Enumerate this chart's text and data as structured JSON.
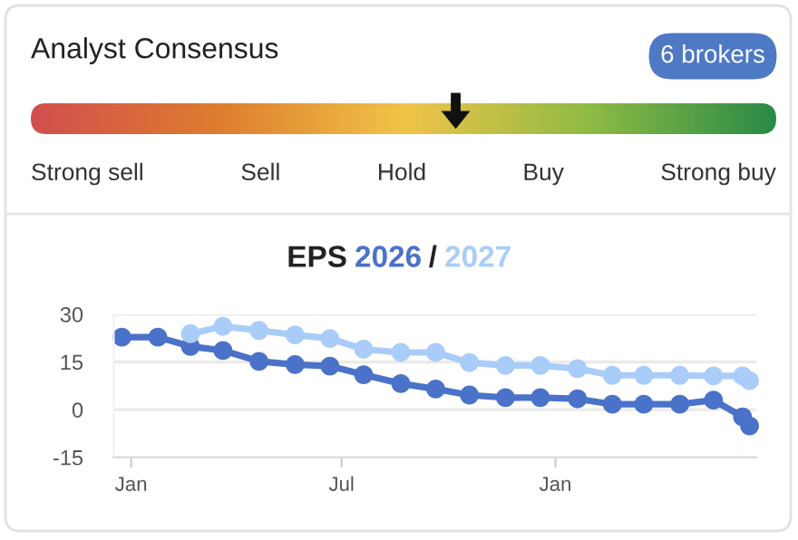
{
  "chart_data": [
    {
      "type": "other",
      "title": "Analyst Consensus",
      "annotations": [
        "6 brokers"
      ],
      "categories": [
        "Strong sell",
        "Sell",
        "Hold",
        "Buy",
        "Strong buy"
      ],
      "colors": [
        "#d24f50",
        "#de7d2e",
        "#f1c448",
        "#8fbb44",
        "#2a8b47"
      ]
    },
    {
      "type": "line",
      "title": "EPS",
      "annotations": [
        "/"
      ],
      "marker": "circle",
      "grid": "y",
      "legend": "top",
      "xlim": [
        "2024-12-17",
        "2026-06-23"
      ],
      "xticks": [
        {
          "value": "2025-01-01",
          "label": "Jan"
        },
        {
          "value": "2025-07-01",
          "label": "Jul"
        },
        {
          "value": "2026-01-01",
          "label": "Jan"
        }
      ],
      "ylim": [
        -15,
        30
      ],
      "yticks": [
        -15,
        0,
        15,
        30
      ],
      "series": [
        {
          "name": "2026",
          "color": "#4a72c9",
          "x": [
            "2024-12-24",
            "2025-01-24",
            "2025-02-21",
            "2025-03-21",
            "2025-04-21",
            "2025-05-22",
            "2025-06-21",
            "2025-07-20",
            "2025-08-21",
            "2025-09-20",
            "2025-10-19",
            "2025-11-19",
            "2025-12-19",
            "2026-01-20",
            "2026-02-19",
            "2026-03-18",
            "2026-04-18",
            "2026-05-17",
            "2026-06-11",
            "2026-06-17"
          ],
          "values": [
            22.8,
            22.8,
            19.9,
            18.6,
            15.2,
            14.2,
            13.7,
            11.0,
            8.2,
            6.5,
            4.6,
            3.8,
            3.8,
            3.4,
            1.7,
            1.7,
            1.7,
            3.0,
            -2.3,
            -5.1
          ]
        },
        {
          "name": "2027",
          "color": "#a9cdf8",
          "x": [
            "2025-02-21",
            "2025-03-21",
            "2025-04-21",
            "2025-05-22",
            "2025-06-21",
            "2025-07-20",
            "2025-08-21",
            "2025-09-20",
            "2025-10-19",
            "2025-11-19",
            "2025-12-19",
            "2026-01-20",
            "2026-02-19",
            "2026-03-18",
            "2026-04-18",
            "2026-05-17",
            "2026-06-11",
            "2026-06-17"
          ],
          "values": [
            23.9,
            26.2,
            24.9,
            23.5,
            22.4,
            19.0,
            18.0,
            18.0,
            14.8,
            13.9,
            13.9,
            12.9,
            10.8,
            10.8,
            10.8,
            10.6,
            10.6,
            9.1
          ]
        }
      ]
    }
  ]
}
